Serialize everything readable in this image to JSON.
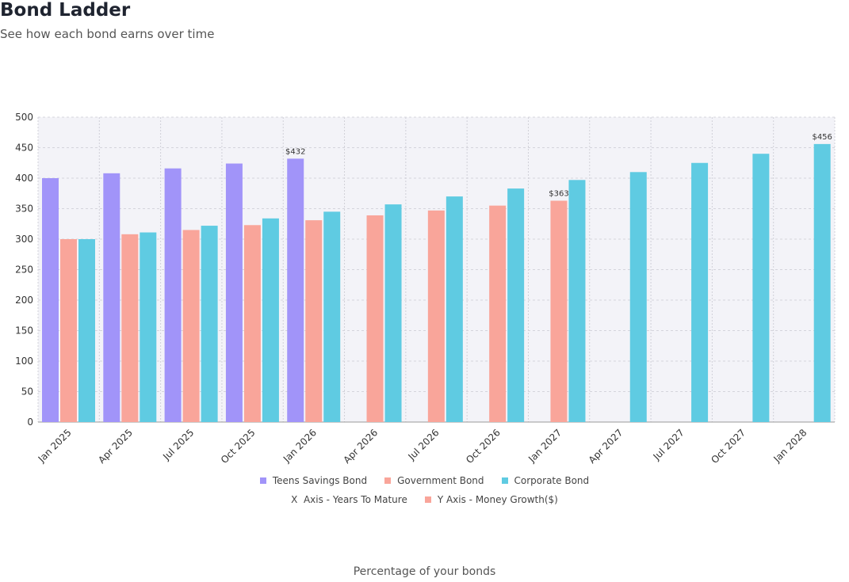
{
  "chart_data": {
    "type": "bar",
    "title": "Bond Ladder",
    "subtitle": "See how each bond earns over time",
    "categories": [
      "Jan 2025",
      "Apr 2025",
      "Jul 2025",
      "Oct 2025",
      "Jan 2026",
      "Apr 2026",
      "Jul 2026",
      "Oct 2026",
      "Jan 2027",
      "Apr 2027",
      "Jul 2027",
      "Oct 2027",
      "Jan 2028"
    ],
    "series": [
      {
        "name": "Teens Savings Bond",
        "color": "#a194f9",
        "values": [
          400,
          408,
          416,
          424,
          432,
          null,
          null,
          null,
          null,
          null,
          null,
          null,
          null
        ],
        "value_labels": [
          null,
          null,
          null,
          null,
          "$432",
          null,
          null,
          null,
          null,
          null,
          null,
          null,
          null
        ]
      },
      {
        "name": "Government Bond",
        "color": "#f9a59a",
        "values": [
          300,
          308,
          315,
          323,
          331,
          339,
          347,
          355,
          363,
          null,
          null,
          null,
          null
        ],
        "value_labels": [
          null,
          null,
          null,
          null,
          null,
          null,
          null,
          null,
          "$363",
          null,
          null,
          null,
          null
        ]
      },
      {
        "name": "Corporate Bond",
        "color": "#5fcbe2",
        "values": [
          300,
          311,
          322,
          334,
          345,
          357,
          370,
          383,
          397,
          410,
          425,
          440,
          456
        ],
        "value_labels": [
          null,
          null,
          null,
          null,
          null,
          null,
          null,
          null,
          null,
          null,
          null,
          null,
          "$456"
        ]
      }
    ],
    "axis_notes": [
      {
        "label": "X  Axis - Years To Mature"
      },
      {
        "label": "Y Axis - Money Growth($)",
        "color": "#f9a59a"
      }
    ],
    "footer": "Percentage of your bonds",
    "ylim": [
      0,
      500
    ],
    "yticks": [
      0,
      50,
      100,
      150,
      200,
      250,
      300,
      350,
      400,
      450,
      500
    ],
    "grid": true
  }
}
